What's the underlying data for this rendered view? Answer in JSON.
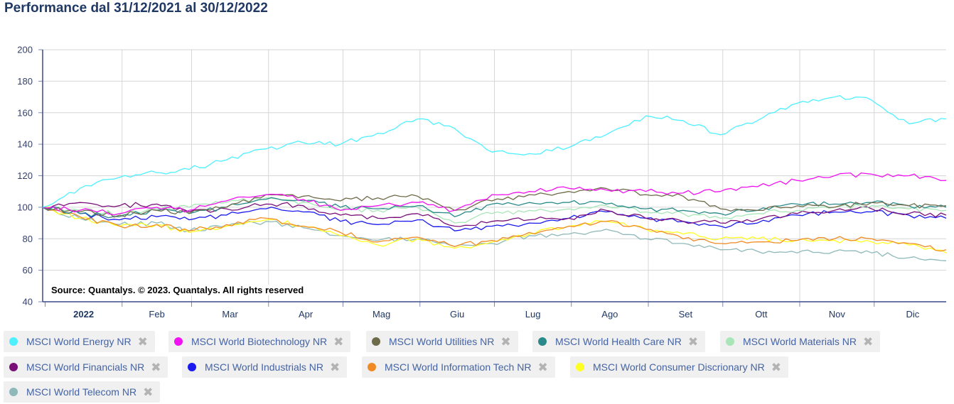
{
  "title": "Performance dal 31/12/2021 al 30/12/2022",
  "credits": "Source: Quantalys. © 2023. Quantalys. All rights reserved",
  "legend_remove_glyph": "✖",
  "chart_data": {
    "type": "line",
    "title": "Performance dal 31/12/2021 al 30/12/2022",
    "ylim": [
      40,
      200
    ],
    "yticks": [
      40,
      60,
      80,
      100,
      120,
      140,
      160,
      180,
      200
    ],
    "xlim": [
      "2021-12-31",
      "2022-12-30"
    ],
    "xtick_labels": [
      "2022",
      "Feb",
      "Mar",
      "Apr",
      "Mag",
      "Giu",
      "Lug",
      "Ago",
      "Set",
      "Ott",
      "Nov",
      "Dic"
    ],
    "xtick_label_dates": [
      "2022-01-01",
      "2022-02-01",
      "2022-03-01",
      "2022-04-01",
      "2022-05-01",
      "2022-06-01",
      "2022-07-01",
      "2022-08-01",
      "2022-09-01",
      "2022-10-01",
      "2022-11-01",
      "2022-12-01"
    ],
    "grid": true,
    "legend": "bottom",
    "x": [
      "2021-12-31",
      "2022-01-15",
      "2022-01-31",
      "2022-02-15",
      "2022-02-28",
      "2022-03-15",
      "2022-03-31",
      "2022-04-15",
      "2022-04-30",
      "2022-05-15",
      "2022-05-31",
      "2022-06-15",
      "2022-06-30",
      "2022-07-15",
      "2022-07-31",
      "2022-08-15",
      "2022-08-31",
      "2022-09-15",
      "2022-09-30",
      "2022-10-15",
      "2022-10-31",
      "2022-11-15",
      "2022-11-30",
      "2022-12-15",
      "2022-12-30"
    ],
    "series": [
      {
        "name": "MSCI World Energy NR",
        "color": "#4ef0ff",
        "values": [
          100,
          112,
          119,
          122,
          124,
          130,
          137,
          141,
          140,
          147,
          156,
          150,
          135,
          134,
          138,
          146,
          158,
          155,
          146,
          155,
          166,
          170,
          168,
          153,
          156
        ]
      },
      {
        "name": "MSCI World Biotechnology NR",
        "color": "#f012f0",
        "values": [
          100,
          98,
          96,
          100,
          98,
          104,
          108,
          105,
          98,
          101,
          103,
          98,
          108,
          110,
          112,
          111,
          110,
          109,
          110,
          113,
          117,
          120,
          121,
          120,
          117
        ]
      },
      {
        "name": "MSCI World Utilities NR",
        "color": "#6e6b4a",
        "values": [
          100,
          97,
          95,
          98,
          96,
          100,
          108,
          107,
          104,
          106,
          107,
          98,
          104,
          108,
          110,
          112,
          108,
          107,
          99,
          98,
          101,
          100,
          103,
          101,
          101
        ]
      },
      {
        "name": "MSCI World Health Care NR",
        "color": "#2a8a8a",
        "values": [
          100,
          96,
          94,
          98,
          96,
          100,
          105,
          104,
          100,
          99,
          101,
          94,
          102,
          103,
          103,
          102,
          99,
          98,
          96,
          98,
          102,
          102,
          103,
          101,
          100
        ]
      },
      {
        "name": "MSCI World Materials NR",
        "color": "#a8e6b8",
        "values": [
          100,
          98,
          96,
          99,
          100,
          103,
          106,
          103,
          98,
          98,
          100,
          90,
          96,
          98,
          99,
          101,
          97,
          96,
          93,
          96,
          98,
          100,
          101,
          99,
          98
        ]
      },
      {
        "name": "MSCI World Financials NR",
        "color": "#7a0f7a",
        "values": [
          100,
          103,
          101,
          102,
          97,
          99,
          102,
          101,
          95,
          93,
          96,
          88,
          91,
          92,
          93,
          98,
          93,
          91,
          90,
          92,
          96,
          98,
          99,
          96,
          95
        ]
      },
      {
        "name": "MSCI World Industrials NR",
        "color": "#1a1aee",
        "values": [
          100,
          96,
          92,
          94,
          92,
          95,
          99,
          97,
          91,
          89,
          92,
          85,
          88,
          90,
          93,
          97,
          93,
          91,
          88,
          90,
          95,
          97,
          97,
          95,
          93
        ]
      },
      {
        "name": "MSCI World Information Tech NR",
        "color": "#f08a24",
        "values": [
          100,
          94,
          88,
          89,
          85,
          89,
          93,
          88,
          84,
          78,
          81,
          75,
          79,
          84,
          88,
          91,
          86,
          80,
          77,
          78,
          79,
          80,
          80,
          77,
          73
        ]
      },
      {
        "name": "MSCI World Consumer Discrionary NR",
        "color": "#ffff22",
        "values": [
          100,
          93,
          88,
          89,
          84,
          88,
          92,
          88,
          82,
          76,
          80,
          74,
          78,
          83,
          88,
          91,
          86,
          83,
          80,
          80,
          79,
          79,
          78,
          76,
          71
        ]
      },
      {
        "name": "MSCI World Telecom NR",
        "color": "#8fb8b8",
        "values": [
          100,
          93,
          89,
          90,
          85,
          88,
          91,
          87,
          82,
          79,
          80,
          75,
          77,
          82,
          83,
          86,
          80,
          77,
          73,
          72,
          71,
          72,
          71,
          68,
          66
        ]
      }
    ]
  }
}
